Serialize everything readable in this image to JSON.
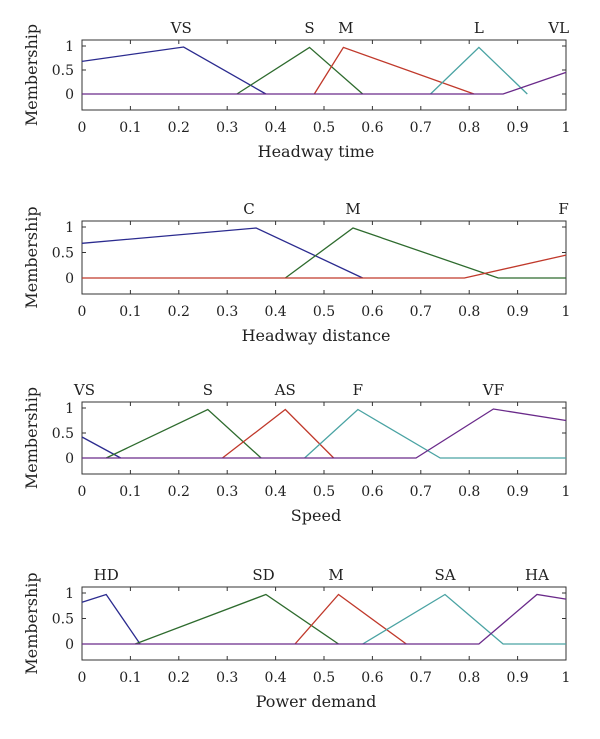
{
  "chart_data": [
    {
      "type": "line",
      "xlabel": "Headway time",
      "ylabel": "Membership",
      "xlim": [
        0,
        1
      ],
      "ylim": [
        0,
        1
      ],
      "xticks": [
        "0",
        "0.1",
        "0.2",
        "0.3",
        "0.4",
        "0.5",
        "0.6",
        "0.7",
        "0.8",
        "0.9",
        "1"
      ],
      "yticks": [
        "0",
        "0.5",
        "1"
      ],
      "series": [
        {
          "name": "VS",
          "color": "#2b2b8f",
          "label_x": 0.205,
          "points": [
            [
              0,
              0.68
            ],
            [
              0.21,
              0.98
            ],
            [
              0.38,
              0
            ]
          ]
        },
        {
          "name": "S",
          "color": "#2e6b2e",
          "label_x": 0.47,
          "points": [
            [
              0.32,
              0
            ],
            [
              0.47,
              0.97
            ],
            [
              0.58,
              0
            ]
          ]
        },
        {
          "name": "M",
          "color": "#c0392b",
          "label_x": 0.545,
          "points": [
            [
              0.48,
              0
            ],
            [
              0.54,
              0.97
            ],
            [
              0.81,
              0
            ]
          ]
        },
        {
          "name": "L",
          "color": "#4aa3a3",
          "label_x": 0.82,
          "points": [
            [
              0.72,
              0
            ],
            [
              0.82,
              0.97
            ],
            [
              0.92,
              0
            ]
          ]
        },
        {
          "name": "VL",
          "color": "#6a2a8a",
          "label_x": 0.985,
          "points": [
            [
              0,
              0
            ],
            [
              0.87,
              0
            ],
            [
              1.0,
              0.45
            ]
          ]
        }
      ]
    },
    {
      "type": "line",
      "xlabel": "Headway distance",
      "ylabel": "Membership",
      "xlim": [
        0,
        1
      ],
      "ylim": [
        0,
        1
      ],
      "xticks": [
        "0",
        "0.1",
        "0.2",
        "0.3",
        "0.4",
        "0.5",
        "0.6",
        "0.7",
        "0.8",
        "0.9",
        "1"
      ],
      "yticks": [
        "0",
        "0.5",
        "1"
      ],
      "series": [
        {
          "name": "C",
          "color": "#2b2b8f",
          "label_x": 0.345,
          "points": [
            [
              0,
              0.68
            ],
            [
              0.36,
              0.98
            ],
            [
              0.58,
              0
            ]
          ]
        },
        {
          "name": "M",
          "color": "#2e6b2e",
          "label_x": 0.56,
          "points": [
            [
              0.42,
              0
            ],
            [
              0.56,
              0.98
            ],
            [
              0.86,
              0
            ],
            [
              1.0,
              0
            ]
          ]
        },
        {
          "name": "F",
          "color": "#c0392b",
          "label_x": 0.995,
          "points": [
            [
              0,
              0
            ],
            [
              0.79,
              0
            ],
            [
              1.0,
              0.45
            ]
          ]
        }
      ]
    },
    {
      "type": "line",
      "xlabel": "Speed",
      "ylabel": "Membership",
      "xlim": [
        0,
        1
      ],
      "ylim": [
        0,
        1
      ],
      "xticks": [
        "0",
        "0.1",
        "0.2",
        "0.3",
        "0.4",
        "0.5",
        "0.6",
        "0.7",
        "0.8",
        "0.9",
        "1"
      ],
      "yticks": [
        "0",
        "0.5",
        "1"
      ],
      "series": [
        {
          "name": "VS",
          "color": "#2b2b8f",
          "label_x": 0.005,
          "points": [
            [
              0,
              0.42
            ],
            [
              0.08,
              0
            ]
          ]
        },
        {
          "name": "S",
          "color": "#2e6b2e",
          "label_x": 0.26,
          "points": [
            [
              0.05,
              0
            ],
            [
              0.26,
              0.97
            ],
            [
              0.37,
              0
            ]
          ]
        },
        {
          "name": "AS",
          "color": "#c0392b",
          "label_x": 0.42,
          "points": [
            [
              0.29,
              0
            ],
            [
              0.42,
              0.97
            ],
            [
              0.52,
              0
            ]
          ]
        },
        {
          "name": "F",
          "color": "#4aa3a3",
          "label_x": 0.57,
          "points": [
            [
              0.46,
              0
            ],
            [
              0.57,
              0.97
            ],
            [
              0.74,
              0
            ],
            [
              1.0,
              0
            ]
          ]
        },
        {
          "name": "VF",
          "color": "#6a2a8a",
          "label_x": 0.85,
          "points": [
            [
              0,
              0
            ],
            [
              0.69,
              0
            ],
            [
              0.85,
              0.98
            ],
            [
              1.0,
              0.75
            ]
          ]
        }
      ]
    },
    {
      "type": "line",
      "xlabel": "Power demand",
      "ylabel": "Membership",
      "xlim": [
        0,
        1
      ],
      "ylim": [
        0,
        1
      ],
      "xticks": [
        "0",
        "0.1",
        "0.2",
        "0.3",
        "0.4",
        "0.5",
        "0.6",
        "0.7",
        "0.8",
        "0.9",
        "1"
      ],
      "yticks": [
        "0",
        "0.5",
        "1"
      ],
      "series": [
        {
          "name": "HD",
          "color": "#2b2b8f",
          "label_x": 0.05,
          "points": [
            [
              0,
              0.82
            ],
            [
              0.05,
              0.97
            ],
            [
              0.12,
              0
            ]
          ]
        },
        {
          "name": "SD",
          "color": "#2e6b2e",
          "label_x": 0.375,
          "points": [
            [
              0.11,
              0
            ],
            [
              0.38,
              0.97
            ],
            [
              0.53,
              0
            ]
          ]
        },
        {
          "name": "M",
          "color": "#c0392b",
          "label_x": 0.525,
          "points": [
            [
              0.44,
              0
            ],
            [
              0.53,
              0.97
            ],
            [
              0.67,
              0
            ]
          ]
        },
        {
          "name": "SA",
          "color": "#4aa3a3",
          "label_x": 0.75,
          "points": [
            [
              0.58,
              0
            ],
            [
              0.75,
              0.97
            ],
            [
              0.87,
              0
            ],
            [
              1.0,
              0
            ]
          ]
        },
        {
          "name": "HA",
          "color": "#6a2a8a",
          "label_x": 0.94,
          "points": [
            [
              0,
              0
            ],
            [
              0.82,
              0
            ],
            [
              0.94,
              0.97
            ],
            [
              1.0,
              0.88
            ]
          ]
        }
      ]
    }
  ]
}
